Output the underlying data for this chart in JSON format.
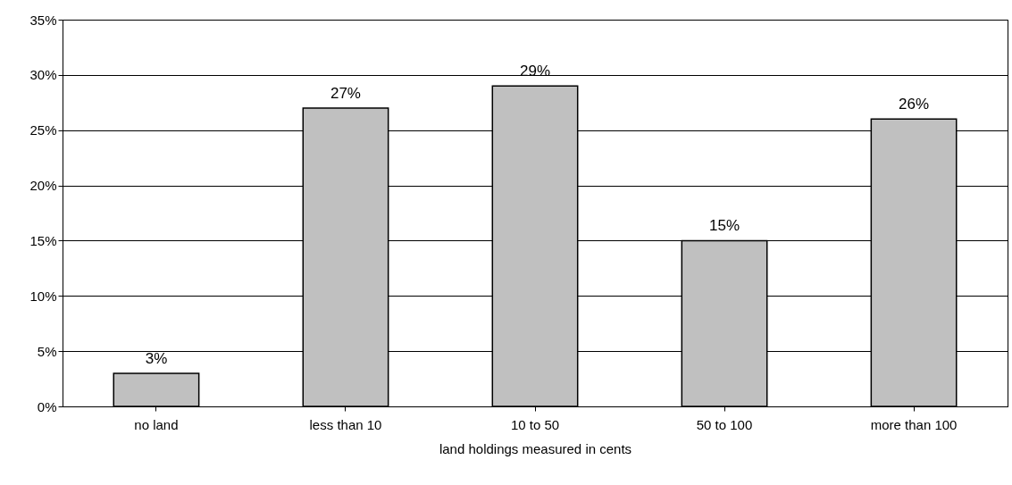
{
  "chart_data": {
    "type": "bar",
    "xlabel": "land holdings measured in cents",
    "categories": [
      "no land",
      "less than 10",
      "10 to 50",
      "50 to 100",
      "more than 100"
    ],
    "values": [
      3,
      27,
      29,
      15,
      26
    ],
    "value_labels": [
      "3%",
      "27%",
      "29%",
      "15%",
      "26%"
    ],
    "color": "#c0c0c0",
    "ylim": [
      0,
      35
    ],
    "yticks": [
      {
        "value": 0,
        "label": "0%"
      },
      {
        "value": 5,
        "label": "5%"
      },
      {
        "value": 10,
        "label": "10%"
      },
      {
        "value": 15,
        "label": "15%"
      },
      {
        "value": 20,
        "label": "20%"
      },
      {
        "value": 25,
        "label": "25%"
      },
      {
        "value": 30,
        "label": "30%"
      },
      {
        "value": 35,
        "label": "35%"
      }
    ],
    "grid": "y"
  }
}
